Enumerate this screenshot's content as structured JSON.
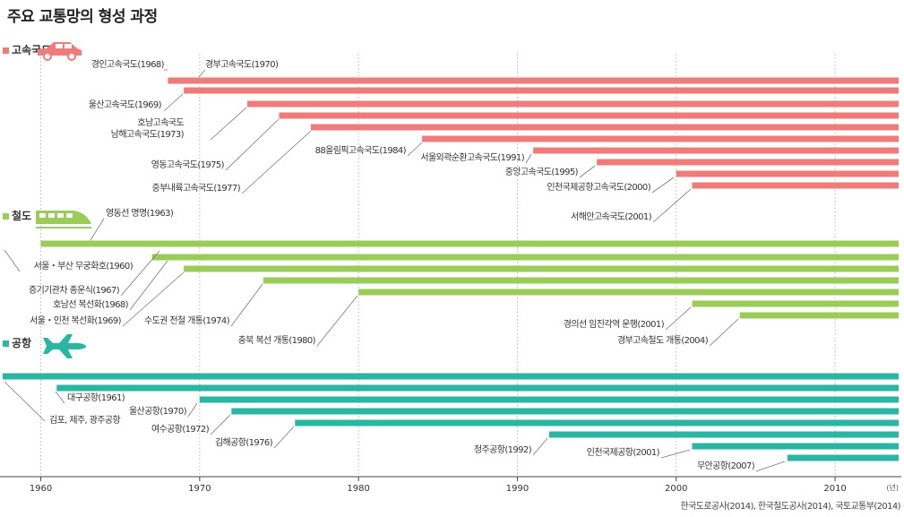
{
  "title": "주요 교통망의 형성 과정",
  "source": "한국도로공사(2014), 한국철도공사(2014), 국토교통부(2014)",
  "chart_data": {
    "type": "bar",
    "title": "주요 교통망의 형성 과정",
    "xlim": [
      1957.6,
      2014
    ],
    "xticks": [
      1960,
      1970,
      1980,
      1990,
      2000,
      2010
    ],
    "xunit": "(년)",
    "sections": [
      {
        "key": "road",
        "name": "고속국도",
        "icon": "car-icon",
        "color": "#f07b7b",
        "items": [
          {
            "label": "경인고속국도(1968)",
            "year": 1968
          },
          {
            "label": "경부고속국도(1970)",
            "year": 1970
          },
          {
            "label": "울산고속국도(1969)",
            "year": 1969
          },
          {
            "label": "호남고속국도\n남해고속국도(1973)",
            "year": 1973
          },
          {
            "label": "영동고속국도(1975)",
            "year": 1975
          },
          {
            "label": "중부내륙고속국도(1977)",
            "year": 1977
          },
          {
            "label": "88올림픽고속국도(1984)",
            "year": 1984
          },
          {
            "label": "서울외곽순환고속국도(1991)",
            "year": 1991
          },
          {
            "label": "중앙고속국도(1995)",
            "year": 1995
          },
          {
            "label": "인천국제공항고속국도(2000)",
            "year": 2000
          },
          {
            "label": "서해안고속국도(2001)",
            "year": 2001
          }
        ]
      },
      {
        "key": "rail",
        "name": "철도",
        "icon": "train-icon",
        "color": "#9bcc5a",
        "items": [
          {
            "label": "영동선 명명(1963)",
            "year": 1963
          },
          {
            "label": "서울・부산 무궁화호(1960)",
            "year": 1960
          },
          {
            "label": "증기기관차 종운식(1967)",
            "year": 1967
          },
          {
            "label": "호남선 복선화(1968)",
            "year": 1968
          },
          {
            "label": "서울・인천 복선화(1969)",
            "year": 1969
          },
          {
            "label": "수도권 전철 개통(1974)",
            "year": 1974
          },
          {
            "label": "충북 복선 개통(1980)",
            "year": 1980
          },
          {
            "label": "경의선 임진각역 운행(2001)",
            "year": 2001
          },
          {
            "label": "경부고속철도 개통(2004)",
            "year": 2004
          }
        ]
      },
      {
        "key": "air",
        "name": "공항",
        "icon": "airplane-icon",
        "color": "#2bb6a4",
        "items": [
          {
            "label": "김포, 제주, 광주공항",
            "year": null
          },
          {
            "label": "대구공항(1961)",
            "year": 1961
          },
          {
            "label": "울산공항(1970)",
            "year": 1970
          },
          {
            "label": "여수공항(1972)",
            "year": 1972
          },
          {
            "label": "김해공항(1976)",
            "year": 1976
          },
          {
            "label": "청주공항(1992)",
            "year": 1992
          },
          {
            "label": "인천국제공항(2001)",
            "year": 2001
          },
          {
            "label": "무안공항(2007)",
            "year": 2007
          }
        ]
      }
    ]
  }
}
